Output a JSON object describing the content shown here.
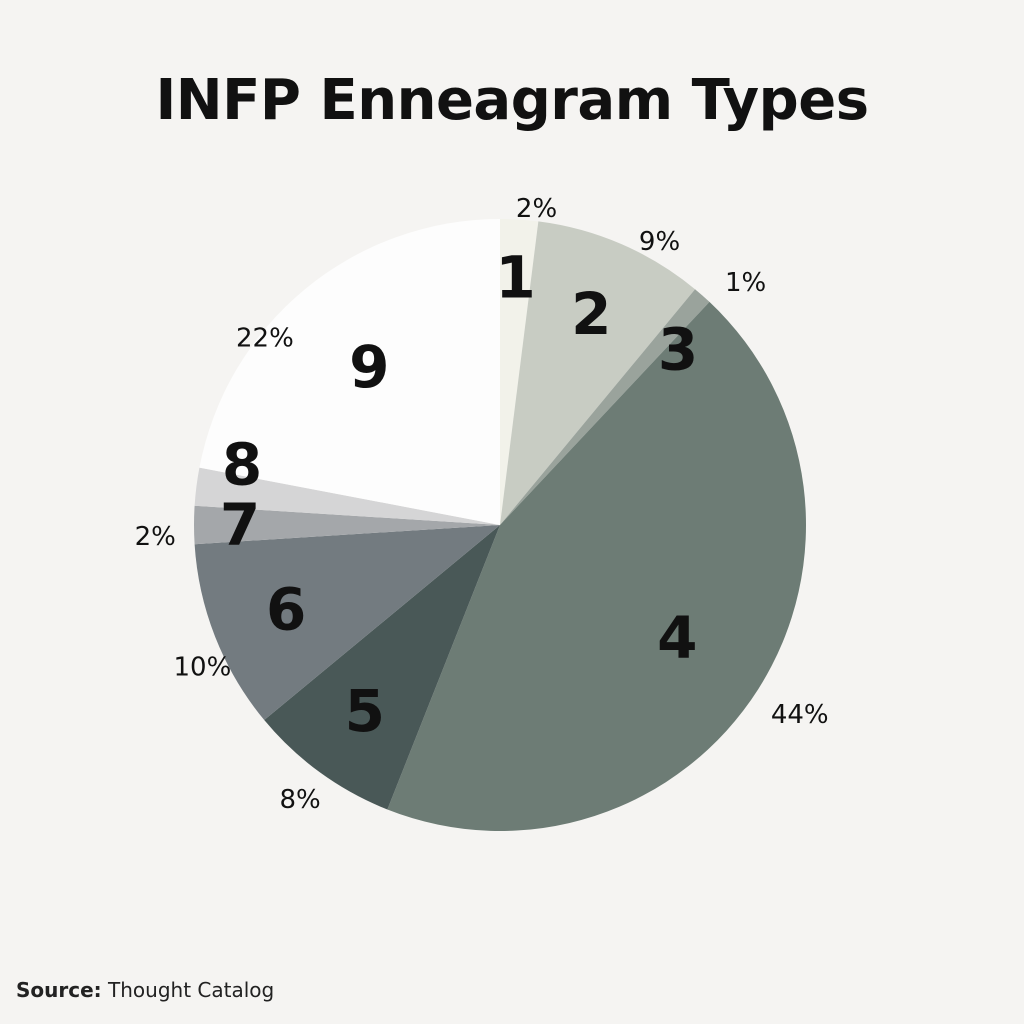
{
  "chart_data": {
    "type": "pie",
    "title": "INFP Enneagram Types",
    "slices": [
      {
        "label": "1",
        "value": 2,
        "value_label": "2%",
        "color": "#f2f2ea"
      },
      {
        "label": "2",
        "value": 9,
        "value_label": "9%",
        "color": "#c8ccc3"
      },
      {
        "label": "3",
        "value": 1,
        "value_label": "1%",
        "color": "#9aa39c"
      },
      {
        "label": "4",
        "value": 44,
        "value_label": "44%",
        "color": "#6d7c75"
      },
      {
        "label": "5",
        "value": 8,
        "value_label": "8%",
        "color": "#495857"
      },
      {
        "label": "6",
        "value": 10,
        "value_label": "10%",
        "color": "#737b80"
      },
      {
        "label": "7",
        "value": 2,
        "value_label": "2%",
        "color": "#a4a7aa"
      },
      {
        "label": "8",
        "value": 2,
        "value_label": "",
        "color": "#d5d5d6"
      },
      {
        "label": "9",
        "value": 22,
        "value_label": "22%",
        "color": "#fdfdfd"
      }
    ]
  },
  "source": {
    "label": "Source:",
    "text": "Thought Catalog"
  }
}
